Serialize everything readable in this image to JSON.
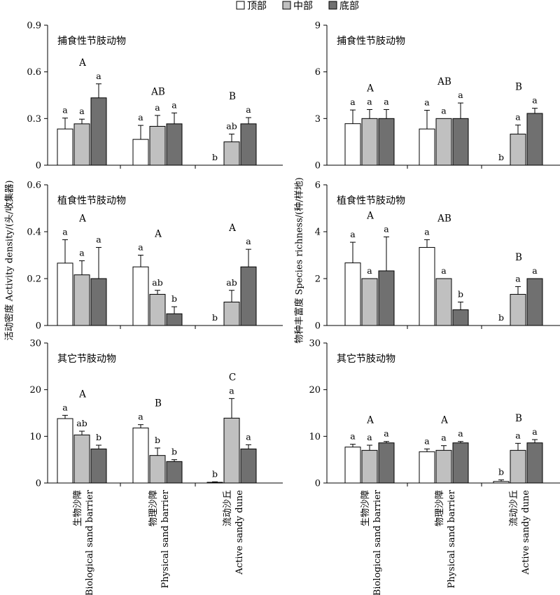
{
  "legend": [
    {
      "name": "顶部",
      "color": "#ffffff"
    },
    {
      "name": "中部",
      "color": "#c0c0c0"
    },
    {
      "name": "底部",
      "color": "#707070"
    }
  ],
  "categories": [
    {
      "cn": "生物沙障",
      "en": "Biological sand barrier"
    },
    {
      "cn": "物理沙障",
      "en": "Physical sand barrier"
    },
    {
      "cn": "流动沙丘",
      "en": "Active sandy dune"
    }
  ],
  "y_label_left": "活动密度 Activity density/(头/收集器)",
  "y_label_right": "物种丰富度 Species richness/(种/样地)",
  "chart_data": [
    {
      "type": "bar",
      "title": "捕食性节肢动物",
      "ylim": [
        0,
        0.9
      ],
      "ticks": [
        "0",
        "0.3",
        "0.6",
        "0.9"
      ],
      "values": [
        [
          0.233,
          0.266,
          0.433
        ],
        [
          0.166,
          0.25,
          0.266
        ],
        [
          0,
          0.15,
          0.266
        ]
      ],
      "errors": [
        [
          0.07,
          0.03,
          0.09
        ],
        [
          0.09,
          0.07,
          0.07
        ],
        [
          0,
          0.05,
          0.04
        ]
      ],
      "letters": [
        [
          "a",
          "a",
          "a"
        ],
        [
          "a",
          "a",
          "a"
        ],
        [
          "b",
          "ab",
          "a"
        ]
      ],
      "group_letters": [
        "A",
        "AB",
        "B"
      ]
    },
    {
      "type": "bar",
      "title": "捕食性节肢动物",
      "ylim": [
        0,
        9
      ],
      "ticks": [
        "0",
        "3",
        "6",
        "9"
      ],
      "values": [
        [
          2.67,
          3,
          3
        ],
        [
          2.33,
          3,
          3
        ],
        [
          0,
          2,
          3.33
        ]
      ],
      "errors": [
        [
          0.88,
          0.58,
          0.58
        ],
        [
          1.2,
          0,
          1
        ],
        [
          0,
          0.58,
          0.33
        ]
      ],
      "letters": [
        [
          "a",
          "a",
          "a"
        ],
        [
          "a",
          "a",
          "a"
        ],
        [
          "b",
          "a",
          "a"
        ]
      ],
      "group_letters": [
        "A",
        "AB",
        "B"
      ]
    },
    {
      "type": "bar",
      "title": "植食性节肢动物",
      "ylim": [
        0,
        0.6
      ],
      "ticks": [
        "0",
        "0.2",
        "0.4",
        "0.6"
      ],
      "values": [
        [
          0.266,
          0.216,
          0.2
        ],
        [
          0.25,
          0.133,
          0.05
        ],
        [
          0,
          0.1,
          0.25
        ]
      ],
      "errors": [
        [
          0.1,
          0.06,
          0.133
        ],
        [
          0.05,
          0.017,
          0.03
        ],
        [
          0,
          0.05,
          0.075
        ]
      ],
      "letters": [
        [
          "a",
          "a",
          "a"
        ],
        [
          "a",
          "ab",
          "b"
        ],
        [
          "b",
          "ab",
          "a"
        ]
      ],
      "group_letters": [
        "A",
        "A",
        "A"
      ]
    },
    {
      "type": "bar",
      "title": "植食性节肢动物",
      "ylim": [
        0,
        6
      ],
      "ticks": [
        "0",
        "2",
        "4",
        "6"
      ],
      "values": [
        [
          2.67,
          2,
          2.33
        ],
        [
          3.33,
          2,
          0.67
        ],
        [
          0,
          1.33,
          2
        ]
      ],
      "errors": [
        [
          0.88,
          0,
          1.45
        ],
        [
          0.33,
          0,
          0.33
        ],
        [
          0,
          0.33,
          0
        ]
      ],
      "letters": [
        [
          "a",
          "a",
          "a"
        ],
        [
          "a",
          "a",
          "b"
        ],
        [
          "b",
          "a",
          "a"
        ]
      ],
      "group_letters": [
        "A",
        "AB",
        "B"
      ]
    },
    {
      "type": "bar",
      "title": "其它节肢动物",
      "ylim": [
        0,
        30
      ],
      "ticks": [
        "0",
        "10",
        "20",
        "30"
      ],
      "values": [
        [
          13.8,
          10.3,
          7.3
        ],
        [
          11.8,
          5.9,
          4.6
        ],
        [
          0.15,
          13.9,
          7.3
        ]
      ],
      "errors": [
        [
          0.7,
          0.8,
          0.8
        ],
        [
          0.7,
          1.6,
          0.4
        ],
        [
          0.1,
          4.2,
          0.9
        ]
      ],
      "letters": [
        [
          "a",
          "ab",
          "b"
        ],
        [
          "a",
          "b",
          "b"
        ],
        [
          "b",
          "a",
          "a"
        ]
      ],
      "group_letters": [
        "A",
        "B",
        "C"
      ]
    },
    {
      "type": "bar",
      "title": "其它节肢动物",
      "ylim": [
        0,
        30
      ],
      "ticks": [
        "0",
        "10",
        "20",
        "30"
      ],
      "values": [
        [
          7.7,
          7,
          8.6
        ],
        [
          6.7,
          7,
          8.6
        ],
        [
          0.33,
          7,
          8.6
        ]
      ],
      "errors": [
        [
          0.6,
          1.1,
          0.3
        ],
        [
          0.6,
          1,
          0.3
        ],
        [
          0.33,
          1.5,
          0.7
        ]
      ],
      "letters": [
        [
          "a",
          "a",
          "a"
        ],
        [
          "a",
          "a",
          "a"
        ],
        [
          "b",
          "a",
          "a"
        ]
      ],
      "group_letters": [
        "A",
        "A",
        "B"
      ]
    }
  ]
}
